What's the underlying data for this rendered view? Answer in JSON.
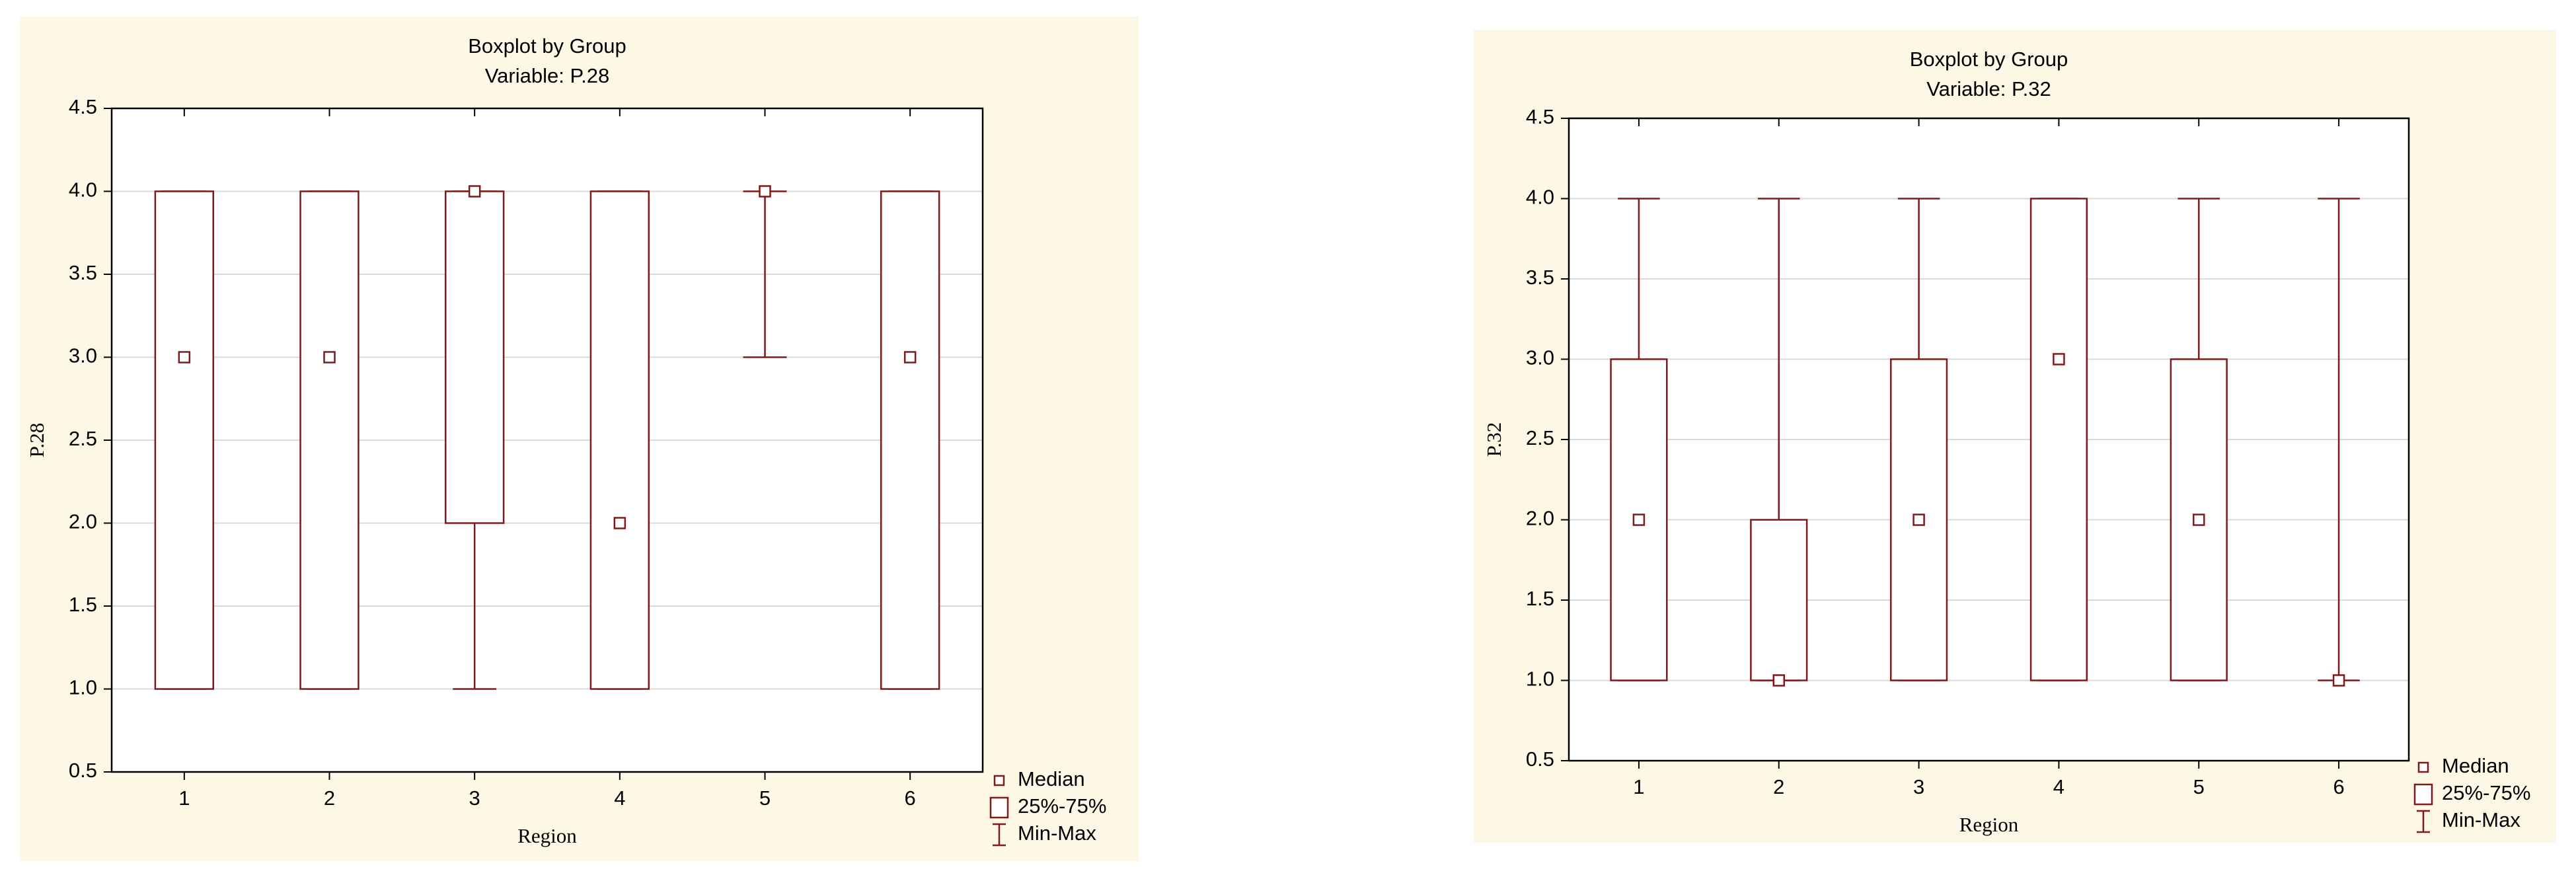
{
  "chart_data": [
    {
      "type": "box",
      "title": "Boxplot by Group",
      "subtitle": "Variable: P.28",
      "x_label": "Region",
      "y_label": "P.28",
      "categories": [
        "1",
        "2",
        "3",
        "4",
        "5",
        "6"
      ],
      "min": [
        1,
        1,
        1,
        1,
        3,
        1
      ],
      "q1": [
        1,
        1,
        2,
        1,
        4,
        1
      ],
      "median": [
        3,
        3,
        4,
        2,
        4,
        3
      ],
      "q3": [
        4,
        4,
        4,
        4,
        4,
        4
      ],
      "max": [
        4,
        4,
        4,
        4,
        4,
        4
      ],
      "color": "#7f1a1c",
      "ylim": [
        0.5,
        4.5
      ],
      "yticks": [
        0.5,
        {
          "value": 1,
          "label": "1.0"
        },
        1.5,
        {
          "value": 2,
          "label": "2.0"
        },
        2.5,
        {
          "value": 3,
          "label": "3.0"
        },
        3.5,
        {
          "value": 4,
          "label": "4.0"
        },
        4.5
      ],
      "grid": true,
      "legend": [
        "Median",
        "25%-75%",
        "Min-Max"
      ]
    },
    {
      "type": "box",
      "title": "Boxplot by Group",
      "subtitle": "Variable: P.32",
      "x_label": "Region",
      "y_label": "P.32",
      "categories": [
        "1",
        "2",
        "3",
        "4",
        "5",
        "6"
      ],
      "min": [
        1,
        1,
        1,
        1,
        1,
        1
      ],
      "q1": [
        1,
        1,
        1,
        1,
        1,
        1
      ],
      "median": [
        2,
        1,
        2,
        3,
        2,
        1
      ],
      "q3": [
        3,
        2,
        3,
        4,
        3,
        1
      ],
      "max": [
        4,
        4,
        4,
        4,
        4,
        4
      ],
      "color": "#7f1a1c",
      "ylim": [
        0.5,
        4.5
      ],
      "yticks": [
        0.5,
        {
          "value": 1,
          "label": "1.0"
        },
        1.5,
        {
          "value": 2,
          "label": "2.0"
        },
        2.5,
        {
          "value": 3,
          "label": "3.0"
        },
        3.5,
        {
          "value": 4,
          "label": "4.0"
        },
        4.5
      ],
      "grid": true,
      "legend": [
        "Median",
        "25%-75%",
        "Min-Max"
      ]
    }
  ]
}
